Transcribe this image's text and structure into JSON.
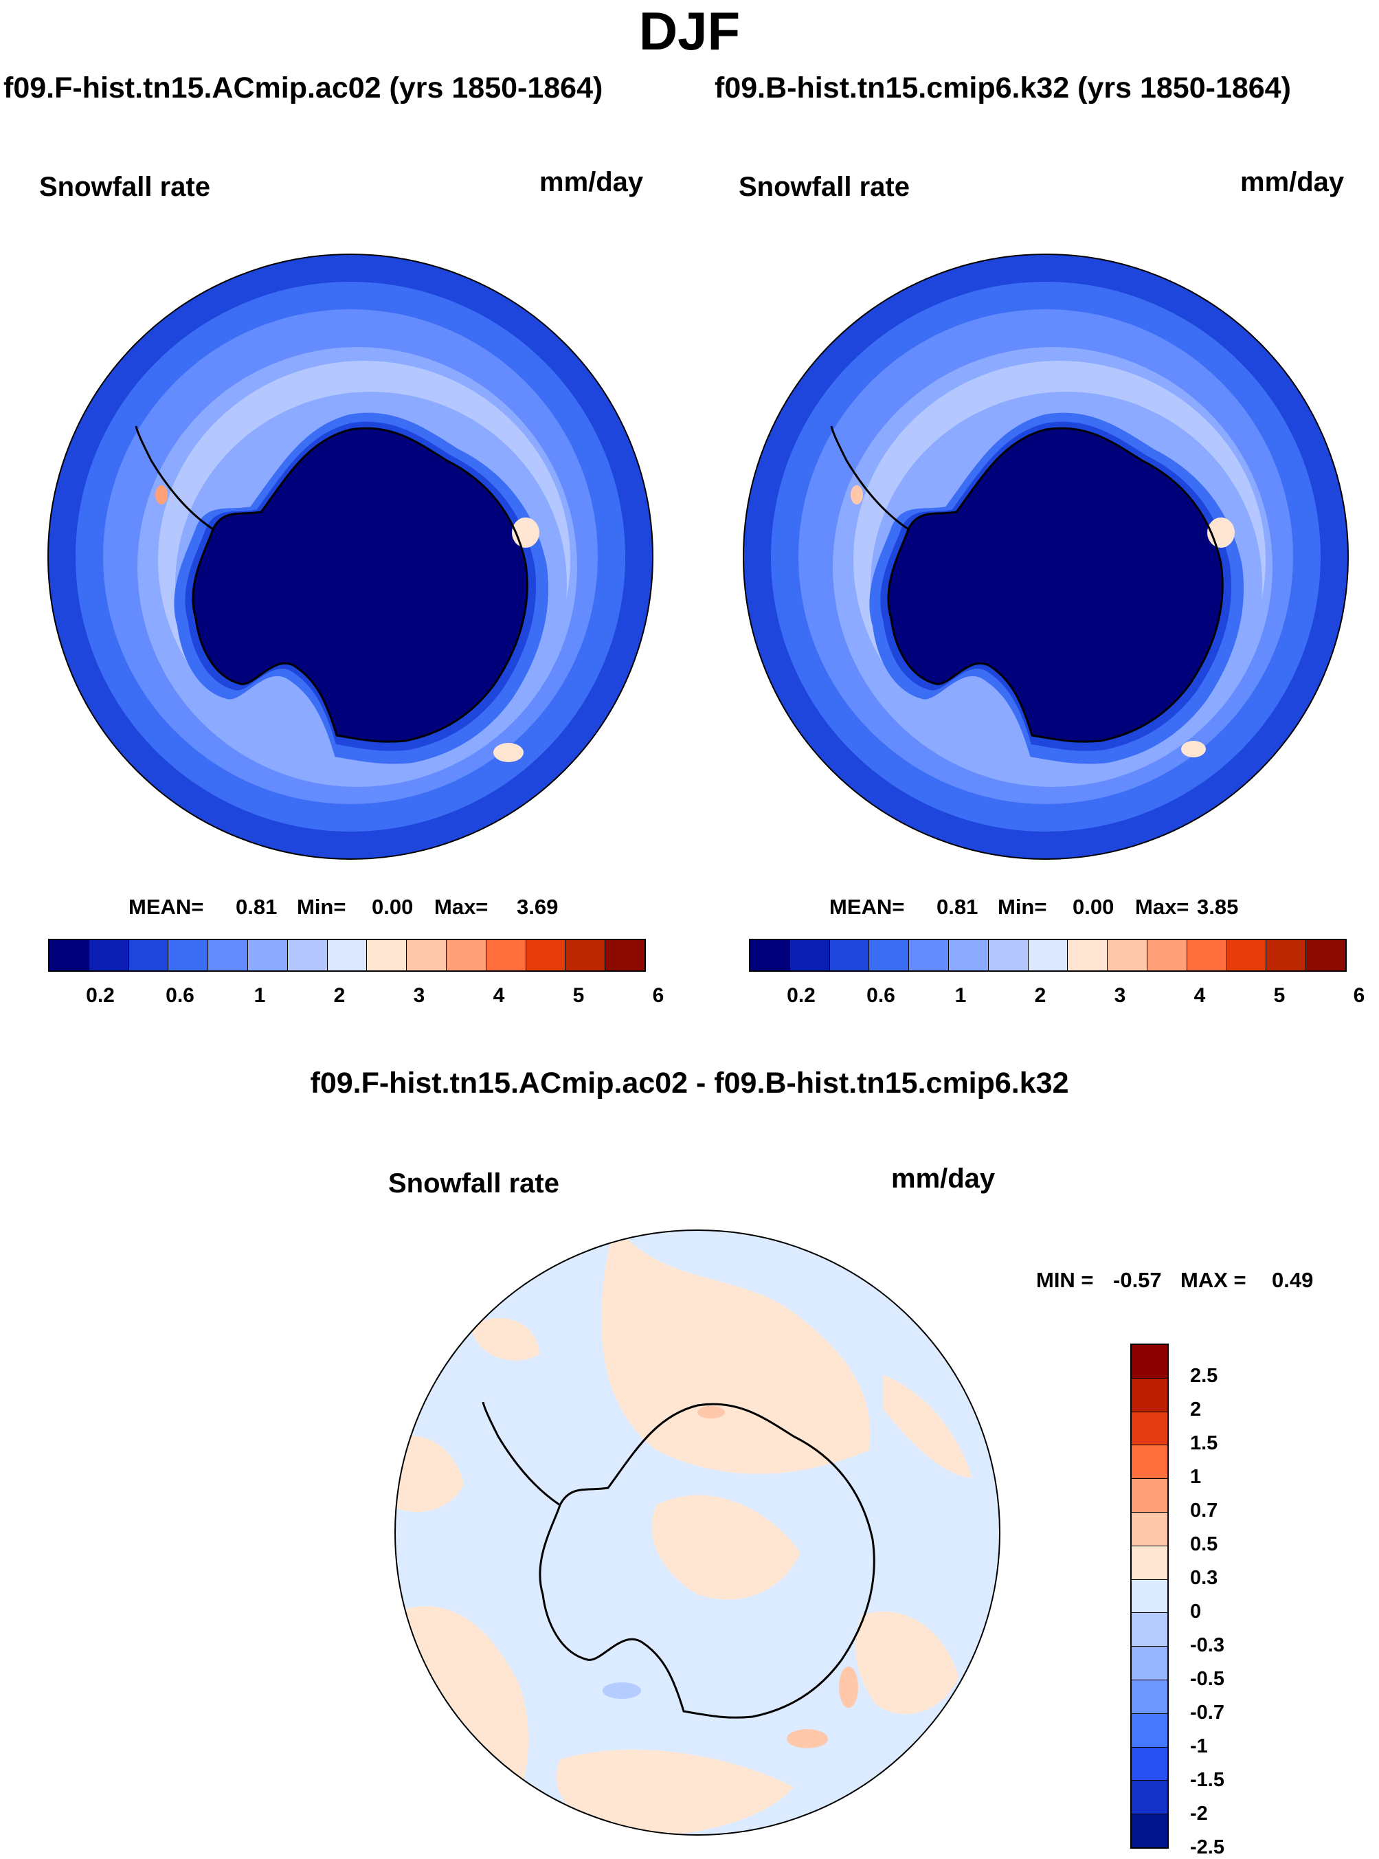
{
  "main_title": "DJF",
  "panels": [
    {
      "experiment": "f09.F-hist.tn15.ACmip.ac02 (yrs 1850-1864)",
      "variable": "Snowfall rate",
      "units": "mm/day",
      "stats": {
        "mean_label": "MEAN=",
        "mean": "0.81",
        "min_label": "Min=",
        "min": "0.00",
        "max_label": "Max=",
        "max": "3.69"
      }
    },
    {
      "experiment": "f09.B-hist.tn15.cmip6.k32 (yrs 1850-1864)",
      "variable": "Snowfall rate",
      "units": "mm/day",
      "stats": {
        "mean_label": "MEAN=",
        "mean": "0.81",
        "min_label": "Min=",
        "min": "0.00",
        "max_label": "Max=",
        "max": "3.85"
      }
    }
  ],
  "colorbar": {
    "colors": [
      "#00007a",
      "#0a1eb4",
      "#1e46dc",
      "#3c6ef5",
      "#648cff",
      "#8caaff",
      "#b4c8ff",
      "#dce8ff",
      "#ffe6d2",
      "#ffc8aa",
      "#ffa078",
      "#ff6e3c",
      "#e63c0a",
      "#be2800",
      "#8c0a00"
    ],
    "tick_labels": [
      "0.2",
      "0.6",
      "1",
      "2",
      "3",
      "4",
      "5",
      "6"
    ]
  },
  "diff_panel": {
    "title": "f09.F-hist.tn15.ACmip.ac02 - f09.B-hist.tn15.cmip6.k32",
    "variable": "Snowfall rate",
    "units": "mm/day",
    "stats": {
      "min_label": "MIN =",
      "min": "-0.57",
      "max_label": "MAX =",
      "max": "0.49"
    },
    "colorbar": {
      "colors": [
        "#8c0000",
        "#be1e00",
        "#e63c14",
        "#ff6e3c",
        "#ffa078",
        "#ffc8aa",
        "#ffe6d2",
        "#dcebff",
        "#b4ccff",
        "#96b4ff",
        "#6e96ff",
        "#4678ff",
        "#2850f0",
        "#1432c8",
        "#00148c"
      ],
      "tick_labels": [
        "2.5",
        "2",
        "1.5",
        "1",
        "0.7",
        "0.5",
        "0.3",
        "0",
        "-0.3",
        "-0.5",
        "-0.7",
        "-1",
        "-1.5",
        "-2",
        "-2.5"
      ]
    }
  },
  "chart_data": {
    "type": "heatmap",
    "region": "Antarctica / Southern Ocean (south polar stereographic)",
    "season": "DJF",
    "variable": "Snowfall rate",
    "units": "mm/day",
    "panels": [
      {
        "name": "f09.F-hist.tn15.ACmip.ac02 (yrs 1850-1864)",
        "mean": 0.81,
        "min": 0.0,
        "max": 3.69
      },
      {
        "name": "f09.B-hist.tn15.cmip6.k32 (yrs 1850-1864)",
        "mean": 0.81,
        "min": 0.0,
        "max": 3.85
      },
      {
        "name": "f09.F-hist.tn15.ACmip.ac02 - f09.B-hist.tn15.cmip6.k32",
        "min": -0.57,
        "max": 0.49
      }
    ],
    "abs_levels": [
      0.2,
      0.4,
      0.6,
      0.8,
      1,
      1.5,
      2,
      2.5,
      3,
      3.5,
      4,
      4.5,
      5,
      5.5,
      6
    ],
    "diff_levels": [
      -2.5,
      -2,
      -1.5,
      -1,
      -0.7,
      -0.5,
      -0.3,
      0,
      0.3,
      0.5,
      0.7,
      1,
      1.5,
      2,
      2.5
    ]
  }
}
